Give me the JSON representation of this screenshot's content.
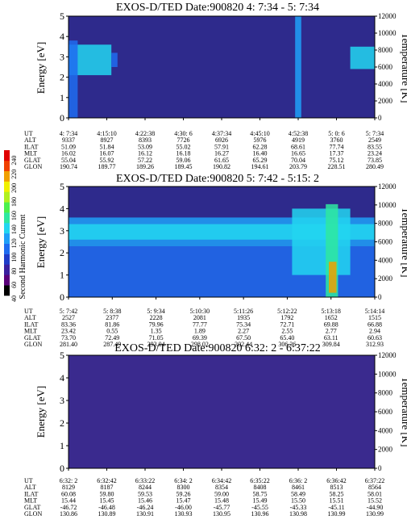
{
  "colorbar": {
    "label": "Second Harmonic Current",
    "ticks": [
      40,
      60,
      80,
      100,
      120,
      140,
      160,
      180,
      200,
      220,
      240
    ],
    "range": [
      40,
      250
    ],
    "colors": [
      "#000000",
      "#5a007a",
      "#3a1f9e",
      "#1f3cc8",
      "#1e6cf0",
      "#1fa0f8",
      "#22d6f0",
      "#2ee8a0",
      "#4cf04c",
      "#b0f020",
      "#f0f000",
      "#f0a000",
      "#f04000",
      "#e00000"
    ]
  },
  "row_labels": [
    "UT",
    "ALT",
    "ILAT",
    "MLT",
    "GLAT",
    "GLON"
  ],
  "chart_data": [
    {
      "type": "heatmap",
      "title": "EXOS-D/TED   Date:900820  4: 7:34 - 5: 7:34",
      "ylabel": "Energy [eV]",
      "ylabel_right": "Temperature [K]",
      "ylim": [
        0,
        5
      ],
      "yticks": [
        0,
        1,
        2,
        3,
        4,
        5
      ],
      "ylim_right": [
        0,
        12000
      ],
      "yticks_right": [
        0,
        2000,
        4000,
        6000,
        8000,
        10000,
        12000
      ],
      "background": "#2e2a8c",
      "features": [
        {
          "kind": "band",
          "x0": 0.0,
          "x1": 0.14,
          "e0": 2.1,
          "e1": 3.6,
          "level": 130
        },
        {
          "kind": "band",
          "x0": 0.0,
          "x1": 0.03,
          "e0": 0.0,
          "e1": 3.8,
          "level": 110
        },
        {
          "kind": "band",
          "x0": 0.14,
          "x1": 0.16,
          "e0": 2.5,
          "e1": 3.2,
          "level": 100
        },
        {
          "kind": "band",
          "x0": 0.92,
          "x1": 1.0,
          "e0": 2.4,
          "e1": 3.5,
          "level": 135
        },
        {
          "kind": "band",
          "x0": 0.74,
          "x1": 0.76,
          "e0": 0.0,
          "e1": 5.0,
          "level": 120
        }
      ],
      "ephemeris": [
        [
          "4: 7:34",
          "4:15:10",
          "4:22:38",
          "4:30: 6",
          "4:37:34",
          "4:45:10",
          "4:52:38",
          "5: 0: 6",
          "5: 7:34"
        ],
        [
          "9337",
          "8927",
          "8393",
          "7726",
          "6926",
          "5976",
          "4919",
          "3760",
          "2549"
        ],
        [
          "51.09",
          "51.84",
          "53.09",
          "55.02",
          "57.91",
          "62.28",
          "68.61",
          "77.74",
          "83.55"
        ],
        [
          "16.02",
          "16.07",
          "16.12",
          "16.18",
          "16.27",
          "16.40",
          "16.65",
          "17.37",
          "23.24"
        ],
        [
          "55.04",
          "55.92",
          "57.22",
          "59.06",
          "61.65",
          "65.29",
          "70.04",
          "75.12",
          "73.85"
        ],
        [
          "190.74",
          "189.77",
          "189.26",
          "189.45",
          "190.82",
          "194.61",
          "203.79",
          "228.51",
          "280.49"
        ]
      ]
    },
    {
      "type": "heatmap",
      "title": "EXOS-D/TED   Date:900820  5: 7:42 - 5:15: 2",
      "ylabel": "Energy [eV]",
      "ylabel_right": "Temperature [K]",
      "ylim": [
        0,
        5
      ],
      "yticks": [
        0,
        1,
        2,
        3,
        4,
        5
      ],
      "ylim_right": [
        0,
        12000
      ],
      "yticks_right": [
        0,
        2000,
        4000,
        6000,
        8000,
        10000,
        12000
      ],
      "background": "#2e2a8c",
      "features": [
        {
          "kind": "band",
          "x0": 0.0,
          "x1": 1.0,
          "e0": 2.3,
          "e1": 3.6,
          "level": 125
        },
        {
          "kind": "band",
          "x0": 0.0,
          "x1": 1.0,
          "e0": 2.6,
          "e1": 3.3,
          "level": 140
        },
        {
          "kind": "band",
          "x0": 0.0,
          "x1": 1.0,
          "e0": 0.0,
          "e1": 2.3,
          "level": 100
        },
        {
          "kind": "band",
          "x0": 0.73,
          "x1": 0.92,
          "e0": 1.0,
          "e1": 4.0,
          "level": 135
        },
        {
          "kind": "band",
          "x0": 0.84,
          "x1": 0.88,
          "e0": 0.0,
          "e1": 4.2,
          "level": 150
        },
        {
          "kind": "band",
          "x0": 0.85,
          "x1": 0.875,
          "e0": 0.2,
          "e1": 1.6,
          "level": 210
        }
      ],
      "ephemeris": [
        [
          "5: 7:42",
          "5: 8:38",
          "5: 9:34",
          "5:10:30",
          "5:11:26",
          "5:12:22",
          "5:13:18",
          "5:14:14"
        ],
        [
          "2527",
          "2377",
          "2228",
          "2081",
          "1935",
          "1792",
          "1652",
          "1515"
        ],
        [
          "83.36",
          "81.86",
          "79.96",
          "77.77",
          "75.34",
          "72.71",
          "69.88",
          "66.88"
        ],
        [
          "23.42",
          "0.55",
          "1.35",
          "1.89",
          "2.27",
          "2.55",
          "2.77",
          "2.94"
        ],
        [
          "73.70",
          "72.49",
          "71.05",
          "69.39",
          "67.50",
          "65.40",
          "63.11",
          "60.63"
        ],
        [
          "281.40",
          "287.49",
          "293.04",
          "298.02",
          "302.44",
          "306.36",
          "309.84",
          "312.93"
        ]
      ]
    },
    {
      "type": "heatmap",
      "title": "EXOS-D/TED   Date:900820  6:32: 2 - 6:37:22",
      "ylabel": "Energy [eV]",
      "ylabel_right": "Temperature [K]",
      "ylim": [
        0,
        5
      ],
      "yticks": [
        0,
        1,
        2,
        3,
        4,
        5
      ],
      "ylim_right": [
        0,
        12000
      ],
      "yticks_right": [
        0,
        2000,
        4000,
        6000,
        8000,
        10000,
        12000
      ],
      "background": "#3a2a8e",
      "features": [],
      "ephemeris": [
        [
          "6:32: 2",
          "6:32:42",
          "6:33:22",
          "6:34: 2",
          "6:34:42",
          "6:35:22",
          "6:36: 2",
          "6:36:42",
          "6:37:22"
        ],
        [
          "8129",
          "8187",
          "8244",
          "8300",
          "8354",
          "8408",
          "8461",
          "8513",
          "8564"
        ],
        [
          "60.08",
          "59.80",
          "59.53",
          "59.26",
          "59.00",
          "58.75",
          "58.49",
          "58.25",
          "58.01"
        ],
        [
          "15.44",
          "15.45",
          "15.46",
          "15.47",
          "15.48",
          "15.49",
          "15.50",
          "15.51",
          "15.52"
        ],
        [
          "-46.72",
          "-46.48",
          "-46.24",
          "-46.00",
          "-45.77",
          "-45.55",
          "-45.33",
          "-45.11",
          "-44.90"
        ],
        [
          "130.86",
          "130.89",
          "130.91",
          "130.93",
          "130.95",
          "130.96",
          "130.98",
          "130.99",
          "130.99"
        ]
      ]
    }
  ]
}
